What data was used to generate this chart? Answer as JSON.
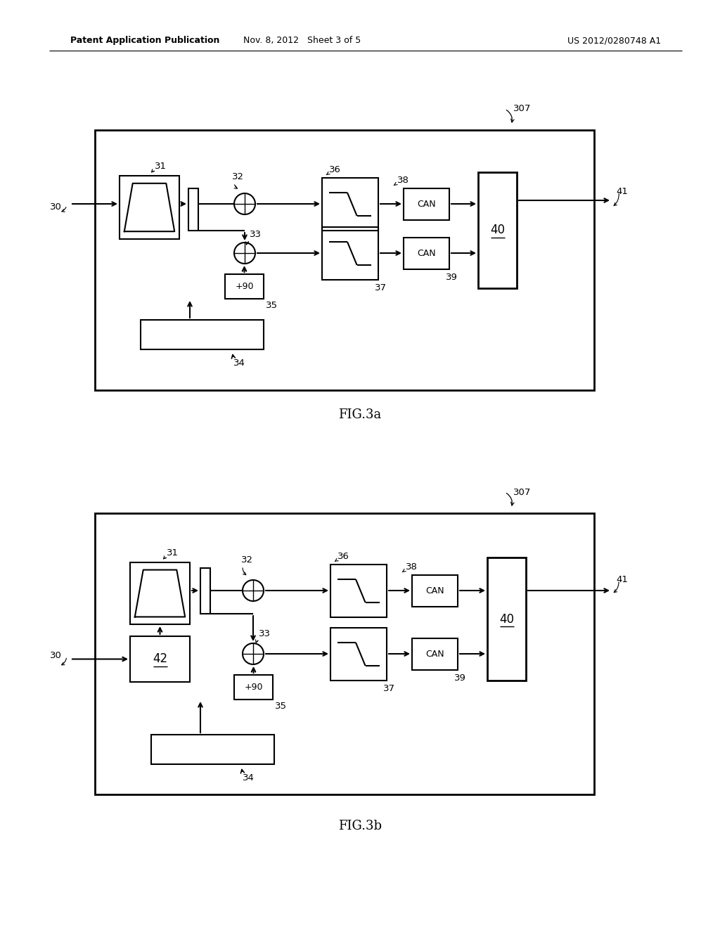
{
  "bg_color": "#ffffff",
  "header_left": "Patent Application Publication",
  "header_mid": "Nov. 8, 2012   Sheet 3 of 5",
  "header_right": "US 2012/0280748 A1",
  "fig3a_label": "FIG.3a",
  "fig3b_label": "FIG.3b"
}
